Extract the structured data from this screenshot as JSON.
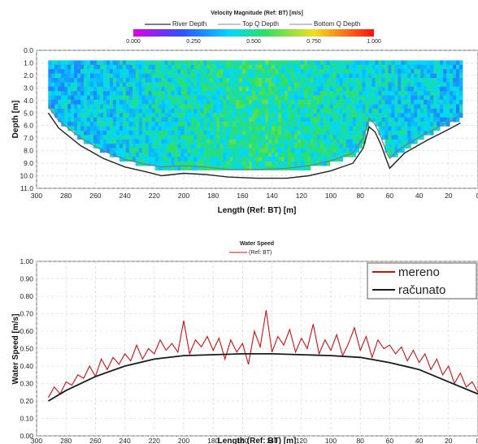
{
  "chart_data": [
    {
      "type": "heatmap",
      "title": "Velocity Magnitude (Ref: BT) [m/s]",
      "legend": [
        "River Depth",
        "Top Q Depth",
        "Bottom Q Depth"
      ],
      "colorbar": {
        "ticks": [
          "0.000",
          "0.250",
          "0.500",
          "0.750",
          "1.000"
        ],
        "range": [
          0,
          1
        ]
      },
      "xlabel": "Length (Ref: BT) [m]",
      "ylabel": "Depth [m]",
      "xlim": [
        300,
        0
      ],
      "ylim": [
        0,
        11
      ],
      "x_ticks": [
        300,
        280,
        260,
        240,
        220,
        200,
        180,
        160,
        140,
        120,
        100,
        80,
        60,
        40,
        20,
        0
      ],
      "y_ticks": [
        "0.0",
        "1.0",
        "2.0",
        "3.0",
        "4.0",
        "5.0",
        "6.0",
        "7.0",
        "8.0",
        "9.0",
        "10.0",
        "11.0"
      ],
      "river_depth": {
        "x": [
          292,
          285,
          270,
          255,
          240,
          225,
          215,
          200,
          185,
          170,
          150,
          130,
          115,
          100,
          85,
          78,
          74,
          70,
          66,
          62,
          60,
          50,
          35,
          20,
          12
        ],
        "y": [
          5.0,
          6.2,
          7.6,
          8.6,
          9.3,
          9.7,
          10.0,
          9.8,
          9.9,
          10.1,
          10.2,
          10.2,
          10.0,
          9.6,
          9.0,
          7.8,
          6.1,
          6.5,
          7.5,
          8.8,
          9.4,
          8.2,
          7.2,
          6.3,
          5.8
        ]
      },
      "bottom_q_depth": {
        "x": [
          292,
          285,
          270,
          255,
          240,
          225,
          215,
          200,
          185,
          170,
          150,
          130,
          115,
          100,
          85,
          78,
          74,
          70,
          66,
          62,
          60,
          50,
          35,
          20,
          12
        ],
        "y": [
          4.5,
          5.6,
          7.0,
          8.0,
          8.7,
          9.1,
          9.3,
          9.2,
          9.3,
          9.5,
          9.5,
          9.4,
          9.2,
          8.8,
          8.2,
          7.0,
          5.4,
          5.9,
          6.9,
          8.2,
          8.6,
          7.6,
          6.6,
          5.7,
          5.2
        ]
      },
      "top_q_depth": 0.8
    },
    {
      "type": "line",
      "title": "Water Speed",
      "legend_title": "(Ref: BT)",
      "xlabel": "Length (Ref: BT) [m]",
      "ylabel": "Water Speed [m/s]",
      "xlim": [
        300,
        0
      ],
      "ylim": [
        0,
        1
      ],
      "x_ticks": [
        300,
        280,
        260,
        240,
        220,
        200,
        180,
        160,
        140,
        120,
        100,
        80,
        60,
        40,
        20,
        0
      ],
      "y_ticks": [
        "0.00",
        "0.10",
        "0.20",
        "0.30",
        "0.40",
        "0.50",
        "0.60",
        "0.70",
        "0.80",
        "0.90",
        "1.00"
      ],
      "series": [
        {
          "name": "mereno",
          "color": "#d01010",
          "x": [
            292,
            288,
            284,
            280,
            276,
            272,
            268,
            264,
            260,
            256,
            252,
            248,
            244,
            240,
            236,
            232,
            228,
            224,
            220,
            216,
            212,
            208,
            204,
            200,
            196,
            192,
            188,
            184,
            180,
            176,
            172,
            168,
            164,
            160,
            156,
            152,
            148,
            144,
            140,
            136,
            132,
            128,
            124,
            120,
            116,
            112,
            108,
            104,
            100,
            96,
            92,
            88,
            84,
            80,
            76,
            72,
            68,
            64,
            60,
            56,
            52,
            48,
            44,
            40,
            36,
            32,
            28,
            24,
            20,
            16,
            12,
            8,
            4,
            0
          ],
          "y": [
            0.22,
            0.28,
            0.24,
            0.31,
            0.29,
            0.35,
            0.33,
            0.4,
            0.34,
            0.44,
            0.38,
            0.45,
            0.41,
            0.47,
            0.43,
            0.52,
            0.44,
            0.5,
            0.47,
            0.55,
            0.49,
            0.53,
            0.48,
            0.66,
            0.47,
            0.55,
            0.51,
            0.57,
            0.49,
            0.56,
            0.44,
            0.55,
            0.48,
            0.53,
            0.41,
            0.6,
            0.51,
            0.72,
            0.48,
            0.57,
            0.52,
            0.61,
            0.48,
            0.56,
            0.5,
            0.64,
            0.47,
            0.55,
            0.49,
            0.58,
            0.46,
            0.53,
            0.62,
            0.49,
            0.57,
            0.45,
            0.55,
            0.5,
            0.52,
            0.47,
            0.51,
            0.43,
            0.49,
            0.42,
            0.47,
            0.38,
            0.44,
            0.35,
            0.4,
            0.3,
            0.36,
            0.28,
            0.31,
            0.25
          ]
        },
        {
          "name": "računato",
          "color": "#1a1a1a",
          "x": [
            292,
            280,
            260,
            240,
            220,
            200,
            180,
            160,
            140,
            120,
            100,
            80,
            60,
            40,
            20,
            0
          ],
          "y": [
            0.2,
            0.26,
            0.34,
            0.4,
            0.44,
            0.46,
            0.465,
            0.47,
            0.47,
            0.465,
            0.46,
            0.45,
            0.42,
            0.38,
            0.31,
            0.24
          ]
        }
      ]
    }
  ]
}
